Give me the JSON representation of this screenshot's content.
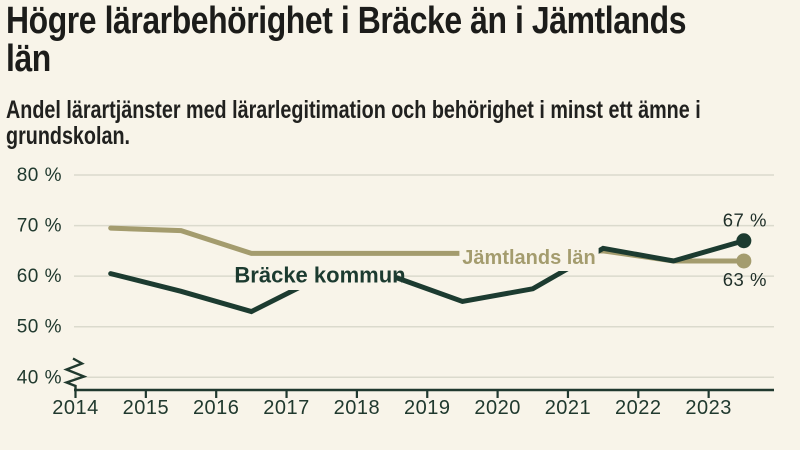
{
  "page": {
    "background": "#f8f4e9"
  },
  "header": {
    "title": "Högre lärarbehörighet i Bräcke än i Jämtlands län",
    "title_lines": [
      "Högre lärarbehörighet i Bräcke än i Jämtlands",
      "län"
    ],
    "subtitle": "Andel lärartjänster med lärarlegitimation och behörighet i minst ett ämne i grundskolan.",
    "subtitle_lines": [
      "Andel lärartjänster med lärarlegitimation och behörighet i minst ett ämne i",
      "grundskolan."
    ]
  },
  "chart_data": {
    "type": "line",
    "title": "Högre lärarbehörighet i Bräcke än i Jämtlands län",
    "unit": "%",
    "x": [
      2014.5,
      2015.5,
      2016.5,
      2017.5,
      2018.5,
      2019.5,
      2020.5,
      2021.5,
      2022.5,
      2023.5
    ],
    "x_tick_labels": [
      "2014",
      "2015",
      "2016",
      "2017",
      "2018",
      "2019",
      "2020",
      "2021",
      "2022",
      "2023"
    ],
    "y_tick_values": [
      80,
      70,
      60,
      50,
      40
    ],
    "y_tick_labels": [
      "80 %",
      "70 %",
      "60 %",
      "50 %",
      "40 %"
    ],
    "ylim": [
      40,
      80
    ],
    "axis_break_below": 40,
    "grid": true,
    "legend_position": "inline",
    "series": [
      {
        "name": "Jämtlands län",
        "color": "#a49c6e",
        "values": [
          69.5,
          69,
          64.5,
          64.5,
          64.5,
          64.5,
          64.5,
          65,
          63,
          63
        ],
        "end_label": "63 %",
        "end_label_pos": "below",
        "inline_label": {
          "x": 529,
          "y": 257,
          "font_size": 20
        }
      },
      {
        "name": "Bräcke kommun",
        "color": "#1c3b30",
        "values": [
          60.5,
          57,
          53,
          60,
          60,
          55,
          57.5,
          65.5,
          63,
          67
        ],
        "end_label": "67 %",
        "end_label_pos": "above",
        "inline_label": {
          "x": 320,
          "y": 275,
          "font_size": 22
        }
      }
    ],
    "colors": {
      "axis": "#20392e",
      "grid": "#dbdacd",
      "tick_text": "#20392e",
      "end_label_text": "#20302a",
      "background": "#f8f4e9"
    }
  }
}
